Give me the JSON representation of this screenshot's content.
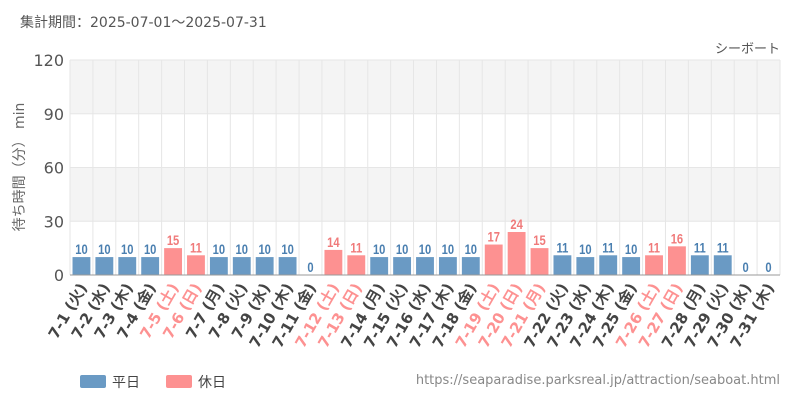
{
  "header": {
    "period_label": "集計期間：2025-07-01～2025-07-31"
  },
  "footer": {
    "url": "https://seaparadise.parksreal.jp/attraction/seaboat.html"
  },
  "colors": {
    "weekday": "#6a9ac4",
    "holiday": "#fd9191",
    "grid": "#e6e6e6",
    "band": "#f4f4f4"
  },
  "chart_data": {
    "type": "bar",
    "title": "シーボート",
    "ylabel": "待ち時間（分） min",
    "ylim": [
      0,
      120
    ],
    "yticks": [
      "0",
      "30",
      "60",
      "90",
      "120"
    ],
    "legend": {
      "placement": "bottom-left",
      "items": [
        {
          "key": "weekday",
          "label": "平日"
        },
        {
          "key": "holiday",
          "label": "休日"
        }
      ]
    },
    "categories": [
      "7-1 (火)",
      "7-2 (水)",
      "7-3 (木)",
      "7-4 (金)",
      "7-5 (土)",
      "7-6 (日)",
      "7-7 (月)",
      "7-8 (火)",
      "7-9 (水)",
      "7-10 (木)",
      "7-11 (金)",
      "7-12 (土)",
      "7-13 (日)",
      "7-14 (月)",
      "7-15 (火)",
      "7-16 (水)",
      "7-17 (木)",
      "7-18 (金)",
      "7-19 (土)",
      "7-20 (日)",
      "7-21 (月)",
      "7-22 (火)",
      "7-23 (水)",
      "7-24 (木)",
      "7-25 (金)",
      "7-26 (土)",
      "7-27 (日)",
      "7-28 (月)",
      "7-29 (火)",
      "7-30 (水)",
      "7-31 (木)"
    ],
    "values": [
      10,
      10,
      10,
      10,
      15,
      11,
      10,
      10,
      10,
      10,
      0,
      14,
      11,
      10,
      10,
      10,
      10,
      10,
      17,
      24,
      15,
      11,
      10,
      11,
      10,
      11,
      16,
      11,
      11,
      0,
      0
    ],
    "day_type": [
      "weekday",
      "weekday",
      "weekday",
      "weekday",
      "holiday",
      "holiday",
      "weekday",
      "weekday",
      "weekday",
      "weekday",
      "weekday",
      "holiday",
      "holiday",
      "weekday",
      "weekday",
      "weekday",
      "weekday",
      "weekday",
      "holiday",
      "holiday",
      "holiday",
      "weekday",
      "weekday",
      "weekday",
      "weekday",
      "holiday",
      "holiday",
      "weekday",
      "weekday",
      "weekday",
      "weekday"
    ]
  }
}
